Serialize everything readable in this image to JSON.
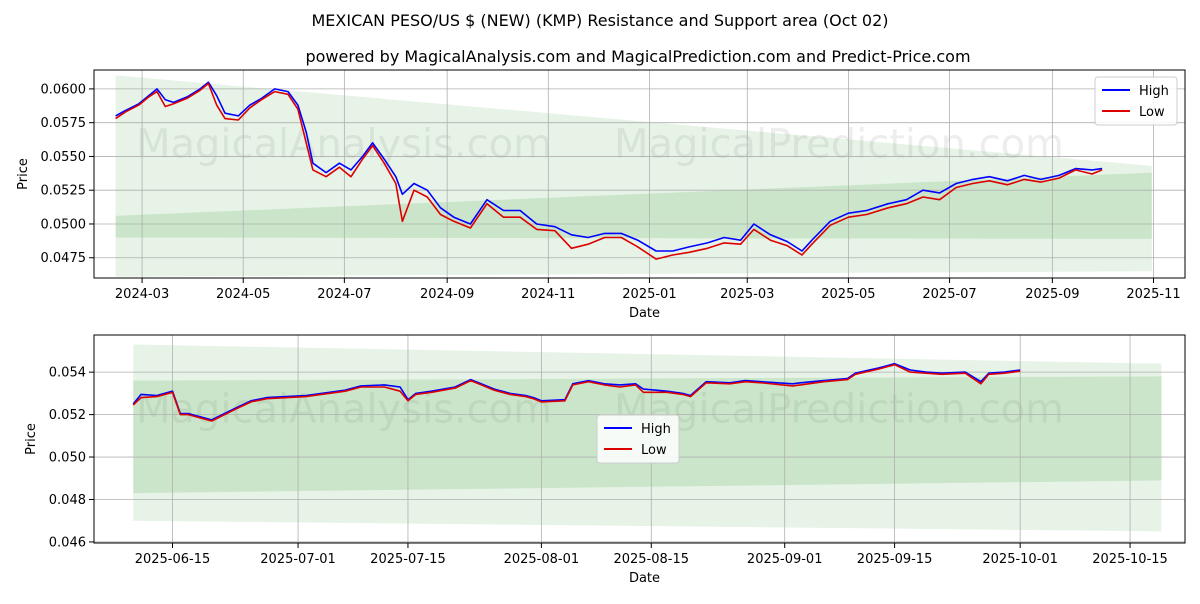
{
  "header": {
    "title": "MEXICAN PESO/US $ (NEW) (KMP) Resistance and Support area (Oct 02)",
    "subtitle": "powered by MagicalAnalysis.com and MagicalPrediction.com and Predict-Price.com"
  },
  "watermarks": [
    "MagicalAnalysis.com",
    "MagicalPrediction.com"
  ],
  "colors": {
    "high": "#0000ff",
    "low": "#dd0000",
    "band": "#2e9a2e",
    "grid": "#b0b0b0"
  },
  "chart_data": [
    {
      "type": "line",
      "name": "full-period",
      "xlabel": "Date",
      "ylabel": "Price",
      "legend_position": "top-right",
      "grid": true,
      "xlim": [
        "2024-02-01",
        "2025-11-20"
      ],
      "ylim": [
        0.046,
        0.0614
      ],
      "x_ticks": [
        "2024-03",
        "2024-05",
        "2024-07",
        "2024-09",
        "2024-11",
        "2025-01",
        "2025-03",
        "2025-05",
        "2025-07",
        "2025-09",
        "2025-11"
      ],
      "x_tick_dates": [
        "2024-03-01",
        "2024-05-01",
        "2024-07-01",
        "2024-09-01",
        "2024-11-01",
        "2025-01-01",
        "2025-03-01",
        "2025-05-01",
        "2025-07-01",
        "2025-09-01",
        "2025-11-01"
      ],
      "y_ticks": [
        "0.0475",
        "0.0500",
        "0.0525",
        "0.0550",
        "0.0575",
        "0.0600"
      ],
      "y_tick_values": [
        0.0475,
        0.05,
        0.0525,
        0.055,
        0.0575,
        0.06
      ],
      "bands": [
        {
          "label": "resistance/support outer",
          "x": [
            "2024-02-14",
            "2025-10-31"
          ],
          "upper": [
            0.061,
            0.0543
          ],
          "lower": [
            0.0461,
            0.0465
          ]
        },
        {
          "label": "resistance/support inner",
          "x": [
            "2024-02-14",
            "2025-10-31"
          ],
          "upper": [
            0.0506,
            0.0538
          ],
          "lower": [
            0.049,
            0.0489
          ]
        }
      ],
      "series": [
        {
          "name": "High",
          "x": [
            "2024-02-14",
            "2024-02-20",
            "2024-02-28",
            "2024-03-05",
            "2024-03-10",
            "2024-03-15",
            "2024-03-20",
            "2024-03-28",
            "2024-04-05",
            "2024-04-10",
            "2024-04-15",
            "2024-04-20",
            "2024-04-28",
            "2024-05-05",
            "2024-05-12",
            "2024-05-20",
            "2024-05-28",
            "2024-06-03",
            "2024-06-08",
            "2024-06-12",
            "2024-06-20",
            "2024-06-28",
            "2024-07-05",
            "2024-07-12",
            "2024-07-18",
            "2024-07-25",
            "2024-08-01",
            "2024-08-05",
            "2024-08-12",
            "2024-08-20",
            "2024-08-28",
            "2024-09-05",
            "2024-09-15",
            "2024-09-25",
            "2024-10-05",
            "2024-10-15",
            "2024-10-25",
            "2024-11-05",
            "2024-11-15",
            "2024-11-25",
            "2024-12-05",
            "2024-12-15",
            "2024-12-25",
            "2025-01-05",
            "2025-01-15",
            "2025-01-25",
            "2025-02-05",
            "2025-02-15",
            "2025-02-25",
            "2025-03-05",
            "2025-03-15",
            "2025-03-25",
            "2025-04-03",
            "2025-04-09",
            "2025-04-20",
            "2025-05-01",
            "2025-05-12",
            "2025-05-25",
            "2025-06-05",
            "2025-06-15",
            "2025-06-25",
            "2025-07-05",
            "2025-07-15",
            "2025-07-25",
            "2025-08-05",
            "2025-08-15",
            "2025-08-25",
            "2025-09-05",
            "2025-09-15",
            "2025-09-25",
            "2025-10-01"
          ],
          "values": [
            0.058,
            0.0584,
            0.0589,
            0.0595,
            0.06,
            0.0592,
            0.059,
            0.0594,
            0.06,
            0.0605,
            0.0595,
            0.0582,
            0.058,
            0.0588,
            0.0593,
            0.06,
            0.0598,
            0.0588,
            0.0568,
            0.0545,
            0.0538,
            0.0545,
            0.054,
            0.055,
            0.056,
            0.0548,
            0.0535,
            0.0522,
            0.053,
            0.0525,
            0.0512,
            0.0505,
            0.05,
            0.0518,
            0.051,
            0.051,
            0.05,
            0.0498,
            0.0492,
            0.049,
            0.0493,
            0.0493,
            0.0488,
            0.048,
            0.048,
            0.0483,
            0.0486,
            0.049,
            0.0488,
            0.05,
            0.0492,
            0.0487,
            0.048,
            0.0488,
            0.0502,
            0.0508,
            0.051,
            0.0515,
            0.0518,
            0.0525,
            0.0523,
            0.053,
            0.0533,
            0.0535,
            0.0532,
            0.0536,
            0.0533,
            0.0536,
            0.0541,
            0.054,
            0.0541
          ]
        },
        {
          "name": "Low",
          "x": [
            "2024-02-14",
            "2024-02-20",
            "2024-02-28",
            "2024-03-05",
            "2024-03-10",
            "2024-03-15",
            "2024-03-20",
            "2024-03-28",
            "2024-04-05",
            "2024-04-10",
            "2024-04-15",
            "2024-04-20",
            "2024-04-28",
            "2024-05-05",
            "2024-05-12",
            "2024-05-20",
            "2024-05-28",
            "2024-06-03",
            "2024-06-08",
            "2024-06-12",
            "2024-06-20",
            "2024-06-28",
            "2024-07-05",
            "2024-07-12",
            "2024-07-18",
            "2024-07-25",
            "2024-08-01",
            "2024-08-05",
            "2024-08-12",
            "2024-08-20",
            "2024-08-28",
            "2024-09-05",
            "2024-09-15",
            "2024-09-25",
            "2024-10-05",
            "2024-10-15",
            "2024-10-25",
            "2024-11-05",
            "2024-11-15",
            "2024-11-25",
            "2024-12-05",
            "2024-12-15",
            "2024-12-25",
            "2025-01-05",
            "2025-01-15",
            "2025-01-25",
            "2025-02-05",
            "2025-02-15",
            "2025-02-25",
            "2025-03-05",
            "2025-03-15",
            "2025-03-25",
            "2025-04-03",
            "2025-04-09",
            "2025-04-20",
            "2025-05-01",
            "2025-05-12",
            "2025-05-25",
            "2025-06-05",
            "2025-06-15",
            "2025-06-25",
            "2025-07-05",
            "2025-07-15",
            "2025-07-25",
            "2025-08-05",
            "2025-08-15",
            "2025-08-25",
            "2025-09-05",
            "2025-09-15",
            "2025-09-25",
            "2025-10-01"
          ],
          "values": [
            0.0578,
            0.0583,
            0.0588,
            0.0594,
            0.0598,
            0.0587,
            0.0589,
            0.0593,
            0.0599,
            0.0604,
            0.0588,
            0.0578,
            0.0577,
            0.0586,
            0.0592,
            0.0598,
            0.0596,
            0.0585,
            0.056,
            0.054,
            0.0535,
            0.0542,
            0.0535,
            0.0548,
            0.0558,
            0.0545,
            0.053,
            0.0502,
            0.0525,
            0.052,
            0.0507,
            0.0502,
            0.0497,
            0.0515,
            0.0505,
            0.0505,
            0.0496,
            0.0495,
            0.0482,
            0.0485,
            0.049,
            0.049,
            0.0483,
            0.0474,
            0.0477,
            0.0479,
            0.0482,
            0.0486,
            0.0485,
            0.0496,
            0.0488,
            0.0484,
            0.0477,
            0.0485,
            0.0499,
            0.0505,
            0.0507,
            0.0512,
            0.0515,
            0.052,
            0.0518,
            0.0527,
            0.053,
            0.0532,
            0.0529,
            0.0533,
            0.0531,
            0.0534,
            0.054,
            0.0537,
            0.054
          ]
        }
      ]
    },
    {
      "type": "line",
      "name": "recent-zoom",
      "xlabel": "Date",
      "ylabel": "Price",
      "legend_position": "center",
      "grid": true,
      "xlim": [
        "2025-06-05",
        "2025-10-22"
      ],
      "ylim": [
        0.04595,
        0.05575
      ],
      "x_ticks": [
        "2025-06-15",
        "2025-07-01",
        "2025-07-15",
        "2025-08-01",
        "2025-08-15",
        "2025-09-01",
        "2025-09-15",
        "2025-10-01",
        "2025-10-15"
      ],
      "x_tick_dates": [
        "2025-06-15",
        "2025-07-01",
        "2025-07-15",
        "2025-08-01",
        "2025-08-15",
        "2025-09-01",
        "2025-09-15",
        "2025-10-01",
        "2025-10-15"
      ],
      "y_ticks": [
        "0.046",
        "0.048",
        "0.050",
        "0.052",
        "0.054"
      ],
      "y_tick_values": [
        0.046,
        0.048,
        0.05,
        0.052,
        0.054
      ],
      "bands": [
        {
          "label": "resistance/support outer",
          "x": [
            "2025-06-10",
            "2025-10-19"
          ],
          "upper": [
            0.0553,
            0.0544
          ],
          "lower": [
            0.047,
            0.0465
          ]
        },
        {
          "label": "resistance/support inner",
          "x": [
            "2025-06-10",
            "2025-10-19"
          ],
          "upper": [
            0.0536,
            0.0538
          ],
          "lower": [
            0.0483,
            0.0489
          ]
        }
      ],
      "series": [
        {
          "name": "High",
          "x": [
            "2025-06-10",
            "2025-06-11",
            "2025-06-13",
            "2025-06-15",
            "2025-06-16",
            "2025-06-17",
            "2025-06-20",
            "2025-06-23",
            "2025-06-25",
            "2025-06-27",
            "2025-07-02",
            "2025-07-07",
            "2025-07-09",
            "2025-07-12",
            "2025-07-14",
            "2025-07-15",
            "2025-07-16",
            "2025-07-18",
            "2025-07-21",
            "2025-07-23",
            "2025-07-24",
            "2025-07-26",
            "2025-07-28",
            "2025-07-30",
            "2025-07-31",
            "2025-08-01",
            "2025-08-04",
            "2025-08-05",
            "2025-08-07",
            "2025-08-09",
            "2025-08-11",
            "2025-08-13",
            "2025-08-14",
            "2025-08-17",
            "2025-08-19",
            "2025-08-20",
            "2025-08-22",
            "2025-08-25",
            "2025-08-27",
            "2025-08-29",
            "2025-09-02",
            "2025-09-03",
            "2025-09-06",
            "2025-09-09",
            "2025-09-10",
            "2025-09-13",
            "2025-09-15",
            "2025-09-17",
            "2025-09-19",
            "2025-09-21",
            "2025-09-24",
            "2025-09-26",
            "2025-09-27",
            "2025-09-29",
            "2025-10-01"
          ],
          "values": [
            0.0525,
            0.05295,
            0.0529,
            0.0531,
            0.05205,
            0.05205,
            0.05175,
            0.0523,
            0.05265,
            0.0528,
            0.0529,
            0.05315,
            0.05335,
            0.0534,
            0.0533,
            0.0527,
            0.053,
            0.0531,
            0.0533,
            0.05365,
            0.0535,
            0.0532,
            0.053,
            0.0529,
            0.0528,
            0.05265,
            0.0527,
            0.05345,
            0.0536,
            0.05345,
            0.0534,
            0.05345,
            0.0532,
            0.0531,
            0.053,
            0.0529,
            0.05355,
            0.0535,
            0.0536,
            0.05355,
            0.05345,
            0.0535,
            0.0536,
            0.0537,
            0.05395,
            0.0542,
            0.0544,
            0.0541,
            0.054,
            0.05395,
            0.054,
            0.05355,
            0.05395,
            0.054,
            0.0541
          ]
        },
        {
          "name": "Low",
          "x": [
            "2025-06-10",
            "2025-06-11",
            "2025-06-13",
            "2025-06-15",
            "2025-06-16",
            "2025-06-17",
            "2025-06-20",
            "2025-06-23",
            "2025-06-25",
            "2025-06-27",
            "2025-07-02",
            "2025-07-07",
            "2025-07-09",
            "2025-07-12",
            "2025-07-14",
            "2025-07-15",
            "2025-07-16",
            "2025-07-18",
            "2025-07-21",
            "2025-07-23",
            "2025-07-24",
            "2025-07-26",
            "2025-07-28",
            "2025-07-30",
            "2025-07-31",
            "2025-08-01",
            "2025-08-04",
            "2025-08-05",
            "2025-08-07",
            "2025-08-09",
            "2025-08-11",
            "2025-08-13",
            "2025-08-14",
            "2025-08-17",
            "2025-08-19",
            "2025-08-20",
            "2025-08-22",
            "2025-08-25",
            "2025-08-27",
            "2025-08-29",
            "2025-09-02",
            "2025-09-03",
            "2025-09-06",
            "2025-09-09",
            "2025-09-10",
            "2025-09-13",
            "2025-09-15",
            "2025-09-17",
            "2025-09-19",
            "2025-09-21",
            "2025-09-24",
            "2025-09-26",
            "2025-09-27",
            "2025-09-29",
            "2025-10-01"
          ],
          "values": [
            0.05245,
            0.0528,
            0.05285,
            0.05305,
            0.052,
            0.052,
            0.0517,
            0.05225,
            0.0526,
            0.05275,
            0.05285,
            0.0531,
            0.0533,
            0.0533,
            0.0531,
            0.05265,
            0.05295,
            0.05305,
            0.05325,
            0.0536,
            0.05345,
            0.05315,
            0.05295,
            0.05285,
            0.05275,
            0.0526,
            0.05265,
            0.0534,
            0.05355,
            0.0534,
            0.0533,
            0.0534,
            0.05305,
            0.05305,
            0.05295,
            0.05285,
            0.0535,
            0.05345,
            0.05355,
            0.0535,
            0.05335,
            0.0534,
            0.05355,
            0.05365,
            0.0539,
            0.05415,
            0.05435,
            0.054,
            0.05395,
            0.0539,
            0.05395,
            0.05345,
            0.0539,
            0.05395,
            0.05405
          ]
        }
      ]
    }
  ]
}
